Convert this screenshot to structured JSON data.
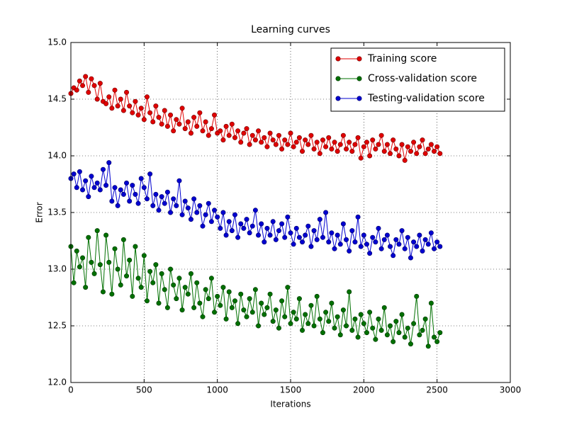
{
  "chart_data": {
    "type": "line",
    "title": "Learning curves",
    "x_label": "Iterations",
    "y_label": "Error",
    "xlim": [
      0,
      3000
    ],
    "ylim": [
      12,
      15
    ],
    "xticks": [
      0,
      500,
      1000,
      1500,
      2000,
      2500,
      3000
    ],
    "yticks": [
      {
        "value": 12,
        "label": "12.0"
      },
      12.5,
      {
        "value": 13,
        "label": "13.0"
      },
      13.5,
      {
        "value": 14,
        "label": "14.0"
      },
      14.5,
      {
        "value": 15,
        "label": "15.0"
      }
    ],
    "grid": true,
    "legend": "upper right",
    "x": [
      0,
      20,
      40,
      60,
      80,
      100,
      120,
      140,
      160,
      180,
      200,
      220,
      240,
      260,
      280,
      300,
      320,
      340,
      360,
      380,
      400,
      420,
      440,
      460,
      480,
      500,
      520,
      540,
      560,
      580,
      600,
      620,
      640,
      660,
      680,
      700,
      720,
      740,
      760,
      780,
      800,
      820,
      840,
      860,
      880,
      900,
      920,
      940,
      960,
      980,
      1000,
      1020,
      1040,
      1060,
      1080,
      1100,
      1120,
      1140,
      1160,
      1180,
      1200,
      1220,
      1240,
      1260,
      1280,
      1300,
      1320,
      1340,
      1360,
      1380,
      1400,
      1420,
      1440,
      1460,
      1480,
      1500,
      1520,
      1540,
      1560,
      1580,
      1600,
      1620,
      1640,
      1660,
      1680,
      1700,
      1720,
      1740,
      1760,
      1780,
      1800,
      1820,
      1840,
      1860,
      1880,
      1900,
      1920,
      1940,
      1960,
      1980,
      2000,
      2020,
      2040,
      2060,
      2080,
      2100,
      2120,
      2140,
      2160,
      2180,
      2200,
      2220,
      2240,
      2260,
      2280,
      2300,
      2320,
      2340,
      2360,
      2380,
      2400,
      2420,
      2440,
      2460,
      2480,
      2500,
      2520
    ],
    "series": [
      {
        "name": "Training score",
        "color": "#e00000",
        "values": [
          14.55,
          14.6,
          14.58,
          14.66,
          14.62,
          14.7,
          14.56,
          14.68,
          14.62,
          14.5,
          14.64,
          14.48,
          14.46,
          14.52,
          14.42,
          14.58,
          14.44,
          14.5,
          14.4,
          14.56,
          14.44,
          14.38,
          14.48,
          14.36,
          14.42,
          14.32,
          14.52,
          14.38,
          14.3,
          14.44,
          14.34,
          14.28,
          14.4,
          14.26,
          14.36,
          14.22,
          14.32,
          14.28,
          14.42,
          14.24,
          14.3,
          14.2,
          14.34,
          14.26,
          14.38,
          14.22,
          14.3,
          14.18,
          14.24,
          14.36,
          14.2,
          14.22,
          14.14,
          14.26,
          14.18,
          14.28,
          14.16,
          14.22,
          14.12,
          14.2,
          14.24,
          14.1,
          14.18,
          14.14,
          14.22,
          14.12,
          14.16,
          14.08,
          14.2,
          14.14,
          14.1,
          14.18,
          14.06,
          14.14,
          14.1,
          14.2,
          14.08,
          14.12,
          14.16,
          14.04,
          14.14,
          14.1,
          14.18,
          14.06,
          14.12,
          14.02,
          14.14,
          14.08,
          14.16,
          14.06,
          14.12,
          14.04,
          14.1,
          14.18,
          14.06,
          14.12,
          14.04,
          14.1,
          14.16,
          13.98,
          14.08,
          14.12,
          14.0,
          14.14,
          14.06,
          14.1,
          14.18,
          14.04,
          14.1,
          14.02,
          14.14,
          14.06,
          14.0,
          14.1,
          13.96,
          14.08,
          14.04,
          14.12,
          14.02,
          14.08,
          14.14,
          14.02,
          14.06,
          14.1,
          14.04,
          14.08,
          14.02
        ]
      },
      {
        "name": "Cross-validation score",
        "color": "#007000",
        "values": [
          13.2,
          12.88,
          13.16,
          13.02,
          13.1,
          12.84,
          13.28,
          13.06,
          12.96,
          13.34,
          13.04,
          12.8,
          13.3,
          13.06,
          12.78,
          13.18,
          13.0,
          12.86,
          13.26,
          12.94,
          13.08,
          12.76,
          13.2,
          12.92,
          12.84,
          13.12,
          12.72,
          12.98,
          12.88,
          13.04,
          12.7,
          12.96,
          12.82,
          12.66,
          13.0,
          12.86,
          12.74,
          12.92,
          12.64,
          12.84,
          12.78,
          12.96,
          12.66,
          12.88,
          12.7,
          12.58,
          12.82,
          12.74,
          12.92,
          12.62,
          12.76,
          12.68,
          12.84,
          12.56,
          12.8,
          12.66,
          12.72,
          12.52,
          12.78,
          12.64,
          12.58,
          12.74,
          12.62,
          12.82,
          12.5,
          12.7,
          12.6,
          12.66,
          12.78,
          12.54,
          12.64,
          12.48,
          12.72,
          12.58,
          12.84,
          12.52,
          12.62,
          12.56,
          12.74,
          12.46,
          12.6,
          12.52,
          12.68,
          12.5,
          12.76,
          12.56,
          12.44,
          12.62,
          12.54,
          12.7,
          12.48,
          12.58,
          12.42,
          12.64,
          12.5,
          12.8,
          12.46,
          12.56,
          12.4,
          12.6,
          12.52,
          12.44,
          12.62,
          12.48,
          12.38,
          12.56,
          12.46,
          12.66,
          12.42,
          12.5,
          12.36,
          12.54,
          12.44,
          12.6,
          12.4,
          12.48,
          12.34,
          12.52,
          12.76,
          12.42,
          12.46,
          12.56,
          12.32,
          12.7,
          12.4,
          12.36,
          12.44
        ]
      },
      {
        "name": "Testing-validation score",
        "color": "#0000d0",
        "values": [
          13.8,
          13.84,
          13.72,
          13.86,
          13.7,
          13.78,
          13.64,
          13.82,
          13.72,
          13.76,
          13.7,
          13.88,
          13.74,
          13.94,
          13.6,
          13.72,
          13.56,
          13.7,
          13.66,
          13.76,
          13.6,
          13.74,
          13.66,
          13.58,
          13.8,
          13.72,
          13.62,
          13.84,
          13.56,
          13.66,
          13.52,
          13.64,
          13.58,
          13.68,
          13.5,
          13.62,
          13.56,
          13.78,
          13.48,
          13.6,
          13.54,
          13.44,
          13.62,
          13.5,
          13.56,
          13.38,
          13.48,
          13.58,
          13.42,
          13.52,
          13.46,
          13.36,
          13.5,
          13.3,
          13.42,
          13.34,
          13.48,
          13.28,
          13.4,
          13.36,
          13.44,
          13.32,
          13.38,
          13.52,
          13.3,
          13.4,
          13.24,
          13.36,
          13.3,
          13.42,
          13.26,
          13.34,
          13.4,
          13.28,
          13.46,
          13.32,
          13.22,
          13.36,
          13.28,
          13.24,
          13.3,
          13.38,
          13.2,
          13.34,
          13.26,
          13.44,
          13.28,
          13.5,
          13.24,
          13.32,
          13.18,
          13.3,
          13.22,
          13.4,
          13.26,
          13.16,
          13.34,
          13.24,
          13.46,
          13.2,
          13.3,
          13.22,
          13.14,
          13.28,
          13.24,
          13.36,
          13.18,
          13.26,
          13.3,
          13.2,
          13.12,
          13.26,
          13.22,
          13.34,
          13.18,
          13.28,
          13.1,
          13.24,
          13.2,
          13.3,
          13.16,
          13.26,
          13.22,
          13.32,
          13.18,
          13.24,
          13.2
        ]
      }
    ]
  }
}
